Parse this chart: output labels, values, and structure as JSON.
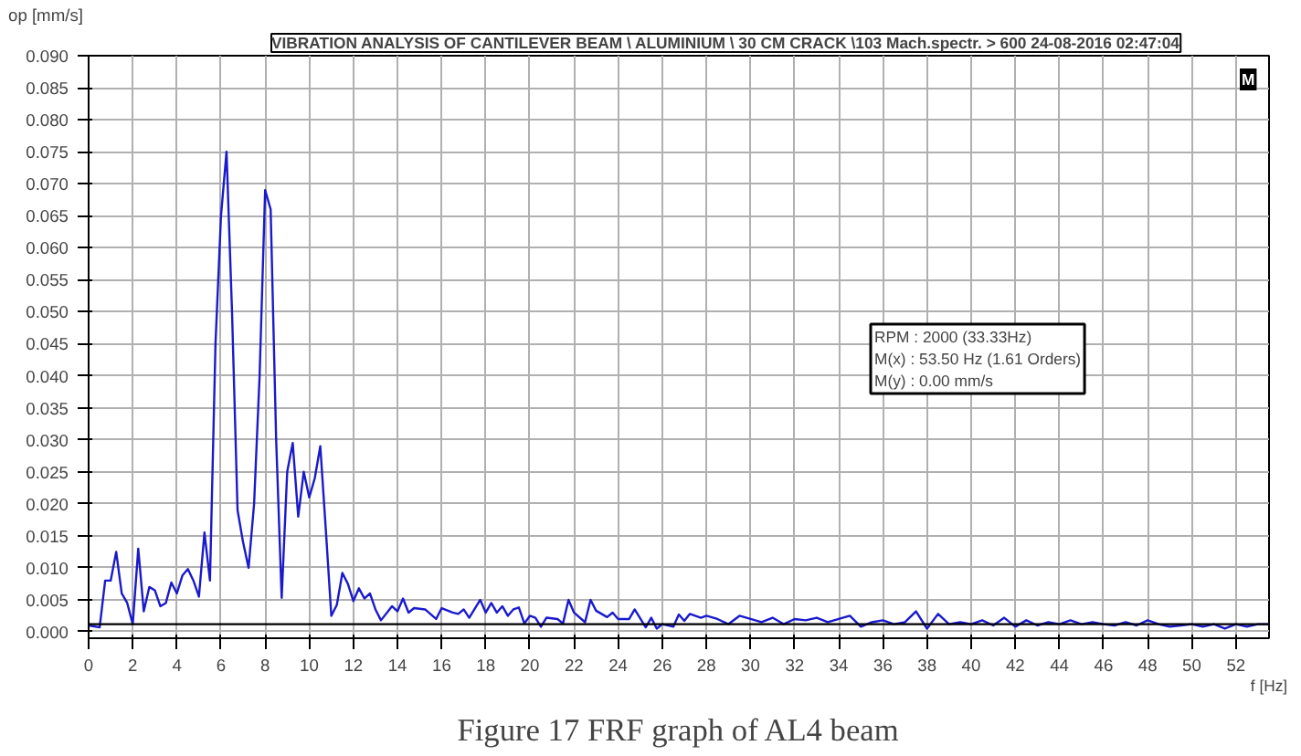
{
  "chart_data": {
    "type": "line",
    "title": "VIBRATION ANALYSIS OF CANTILEVER BEAM \\ ALUMINIUM \\ 30 CM CRACK \\103 Mach.spectr. > 600 24-08-2016 02:47:04",
    "ylabel": "op [mm/s]",
    "xlabel": "f [Hz]",
    "x": [
      0,
      0.5,
      0.75,
      1.0,
      1.25,
      1.5,
      1.75,
      2.0,
      2.25,
      2.5,
      2.75,
      3.0,
      3.25,
      3.5,
      3.75,
      4.0,
      4.25,
      4.5,
      4.75,
      5.0,
      5.25,
      5.5,
      5.75,
      6.0,
      6.25,
      6.5,
      6.75,
      7.0,
      7.25,
      7.5,
      7.75,
      8.0,
      8.25,
      8.5,
      8.75,
      9.0,
      9.25,
      9.5,
      9.75,
      10.0,
      10.25,
      10.5,
      10.75,
      11.0,
      11.25,
      11.5,
      11.75,
      12.0,
      12.25,
      12.5,
      12.75,
      13.0,
      13.25,
      13.75,
      14.0,
      14.25,
      14.5,
      14.75,
      15.25,
      15.75,
      16.0,
      16.5,
      16.75,
      17.0,
      17.25,
      17.75,
      18.0,
      18.25,
      18.5,
      18.75,
      19.0,
      19.25,
      19.5,
      19.75,
      20.0,
      20.25,
      20.5,
      20.75,
      21.25,
      21.5,
      21.75,
      22.0,
      22.5,
      22.75,
      23.0,
      23.5,
      23.75,
      24.0,
      24.5,
      24.75,
      25.25,
      25.5,
      25.75,
      26.0,
      26.5,
      26.75,
      27.0,
      27.25,
      27.75,
      28.0,
      28.5,
      29.0,
      29.5,
      30.0,
      30.5,
      31.0,
      31.5,
      32.0,
      32.5,
      33.0,
      33.5,
      34.0,
      34.5,
      35.0,
      35.5,
      36.0,
      36.5,
      37.0,
      37.5,
      38.0,
      38.5,
      39.0,
      39.5,
      40.0,
      40.5,
      41.0,
      41.5,
      42.0,
      42.5,
      43.0,
      43.5,
      44.0,
      44.5,
      45.0,
      45.5,
      46.0,
      46.5,
      47.0,
      47.5,
      48.0,
      48.5,
      49.0,
      49.5,
      50.0,
      50.5,
      51.0,
      51.5,
      52.0,
      52.5,
      53.0,
      53.5
    ],
    "series": [
      {
        "color": "#1a1acc",
        "values": [
          0.001,
          0.0007,
          0.008,
          0.008,
          0.0125,
          0.006,
          0.0045,
          0.0012,
          0.013,
          0.0032,
          0.007,
          0.0065,
          0.004,
          0.0045,
          0.0077,
          0.006,
          0.0088,
          0.0098,
          0.008,
          0.0055,
          0.0155,
          0.008,
          0.045,
          0.065,
          0.075,
          0.05,
          0.019,
          0.014,
          0.01,
          0.02,
          0.04,
          0.069,
          0.066,
          0.03,
          0.0053,
          0.025,
          0.0295,
          0.018,
          0.025,
          0.021,
          0.024,
          0.029,
          0.016,
          0.0025,
          0.0042,
          0.0092,
          0.0075,
          0.0048,
          0.0068,
          0.0052,
          0.006,
          0.0035,
          0.0018,
          0.004,
          0.0032,
          0.0052,
          0.003,
          0.0037,
          0.0035,
          0.002,
          0.0037,
          0.003,
          0.0028,
          0.0035,
          0.0022,
          0.005,
          0.003,
          0.0045,
          0.003,
          0.004,
          0.0025,
          0.0035,
          0.0038,
          0.0013,
          0.0025,
          0.0022,
          0.0008,
          0.0022,
          0.002,
          0.0013,
          0.005,
          0.003,
          0.0015,
          0.005,
          0.0033,
          0.0023,
          0.003,
          0.002,
          0.002,
          0.0035,
          0.0007,
          0.0022,
          0.0005,
          0.0012,
          0.0008,
          0.0027,
          0.0017,
          0.0028,
          0.0022,
          0.0025,
          0.002,
          0.0012,
          0.0025,
          0.002,
          0.0015,
          0.0022,
          0.0012,
          0.002,
          0.0018,
          0.0022,
          0.0015,
          0.002,
          0.0025,
          0.0008,
          0.0015,
          0.0018,
          0.0012,
          0.0015,
          0.0032,
          0.0005,
          0.0028,
          0.0012,
          0.0015,
          0.0012,
          0.0018,
          0.001,
          0.0022,
          0.0008,
          0.0018,
          0.001,
          0.0015,
          0.0012,
          0.0018,
          0.0012,
          0.0015,
          0.0012,
          0.001,
          0.0015,
          0.001,
          0.0018,
          0.0012,
          0.0008,
          0.001,
          0.0012,
          0.0008,
          0.0012,
          0.0005,
          0.0012,
          0.0008,
          0.0012,
          0.0012
        ]
      }
    ],
    "xlim": [
      0,
      53.5
    ],
    "ylim": [
      -0.001,
      0.09
    ],
    "xticks": [
      0,
      2,
      4,
      6,
      8,
      10,
      12,
      14,
      16,
      18,
      20,
      22,
      24,
      26,
      28,
      30,
      32,
      34,
      36,
      38,
      40,
      42,
      44,
      46,
      48,
      50,
      52
    ],
    "yticks": [
      {
        "value": 0,
        "label": "0.000"
      },
      {
        "value": 0.005,
        "label": "0.005"
      },
      {
        "value": 0.01,
        "label": "0.010"
      },
      {
        "value": 0.015,
        "label": "0.015"
      },
      {
        "value": 0.02,
        "label": "0.020"
      },
      {
        "value": 0.025,
        "label": "0.025"
      },
      {
        "value": 0.03,
        "label": "0.030"
      },
      {
        "value": 0.035,
        "label": "0.035"
      },
      {
        "value": 0.04,
        "label": "0.040"
      },
      {
        "value": 0.045,
        "label": "0.045"
      },
      {
        "value": 0.05,
        "label": "0.050"
      },
      {
        "value": 0.055,
        "label": "0.055"
      },
      {
        "value": 0.06,
        "label": "0.060"
      },
      {
        "value": 0.065,
        "label": "0.065"
      },
      {
        "value": 0.07,
        "label": "0.070"
      },
      {
        "value": 0.075,
        "label": "0.075"
      },
      {
        "value": 0.08,
        "label": "0.080"
      },
      {
        "value": 0.085,
        "label": "0.085"
      },
      {
        "value": 0.09,
        "label": "0.090"
      }
    ],
    "ref_lines": [
      {
        "axis": "y",
        "value": 0.0012,
        "color": "#000000"
      }
    ],
    "grid": true,
    "marker": "none",
    "line_style": "solid",
    "annotations": [
      "RPM : 2000 (33.33Hz)\nM(x) : 53.50 Hz (1.61 Orders)\nM(y) : 0.00 mm/s",
      "M",
      "Figure 17 FRF graph of AL4 beam"
    ]
  }
}
